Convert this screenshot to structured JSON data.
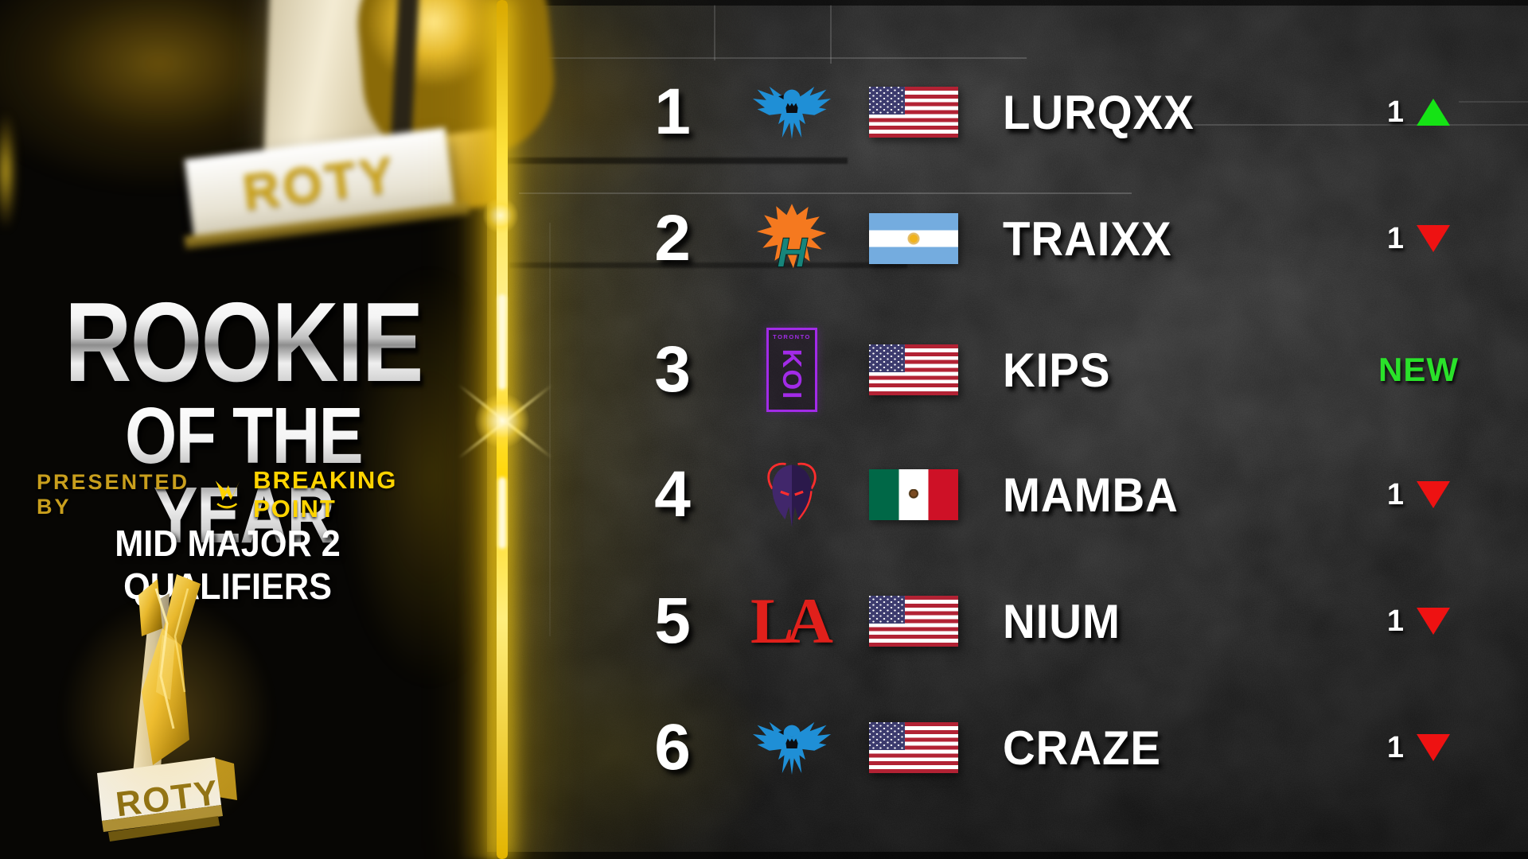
{
  "branding": {
    "title_line1": "ROOKIE",
    "title_line2": "OF THE YEAR",
    "presented_by": "PRESENTED BY",
    "sponsor": "BREAKING POINT",
    "event": "MID MAJOR 2 QUALIFIERS",
    "trophy_label": "ROTY"
  },
  "colors": {
    "gold": "#ffd400",
    "gold_dark": "#c99f1d",
    "up_green": "#15e315",
    "down_red": "#ee1212",
    "new_green": "#2ae22a",
    "dallas_blue": "#1f8fd6",
    "houston_orange": "#f5791f",
    "houston_teal": "#17857b",
    "toronto_purple": "#a22be8",
    "rokkr_purple": "#41276b",
    "rokkr_red": "#ff2d2d",
    "guerrillas_red": "#e0201b"
  },
  "team_logos": {
    "toronto_top_text": "TORONTO",
    "toronto_main_text": "KOI",
    "la_text": "LA"
  },
  "leaderboard": {
    "rows": [
      {
        "rank": "1",
        "team": "dallas-eagle",
        "country": "united-states",
        "player": "LURQXX",
        "movement": {
          "direction": "up",
          "value": "1"
        }
      },
      {
        "rank": "2",
        "team": "houston-burst",
        "country": "argentina",
        "player": "TRAIXX",
        "movement": {
          "direction": "down",
          "value": "1"
        }
      },
      {
        "rank": "3",
        "team": "toronto-koi",
        "country": "united-states",
        "player": "KIPS",
        "movement": {
          "direction": "new",
          "value": "NEW"
        }
      },
      {
        "rank": "4",
        "team": "rokkr-helmet",
        "country": "mexico",
        "player": "MAMBA",
        "movement": {
          "direction": "down",
          "value": "1"
        }
      },
      {
        "rank": "5",
        "team": "la-guerrillas",
        "country": "united-states",
        "player": "NIUM",
        "movement": {
          "direction": "down",
          "value": "1"
        }
      },
      {
        "rank": "6",
        "team": "dallas-eagle",
        "country": "united-states",
        "player": "CRAZE",
        "movement": {
          "direction": "down",
          "value": "1"
        }
      }
    ]
  }
}
